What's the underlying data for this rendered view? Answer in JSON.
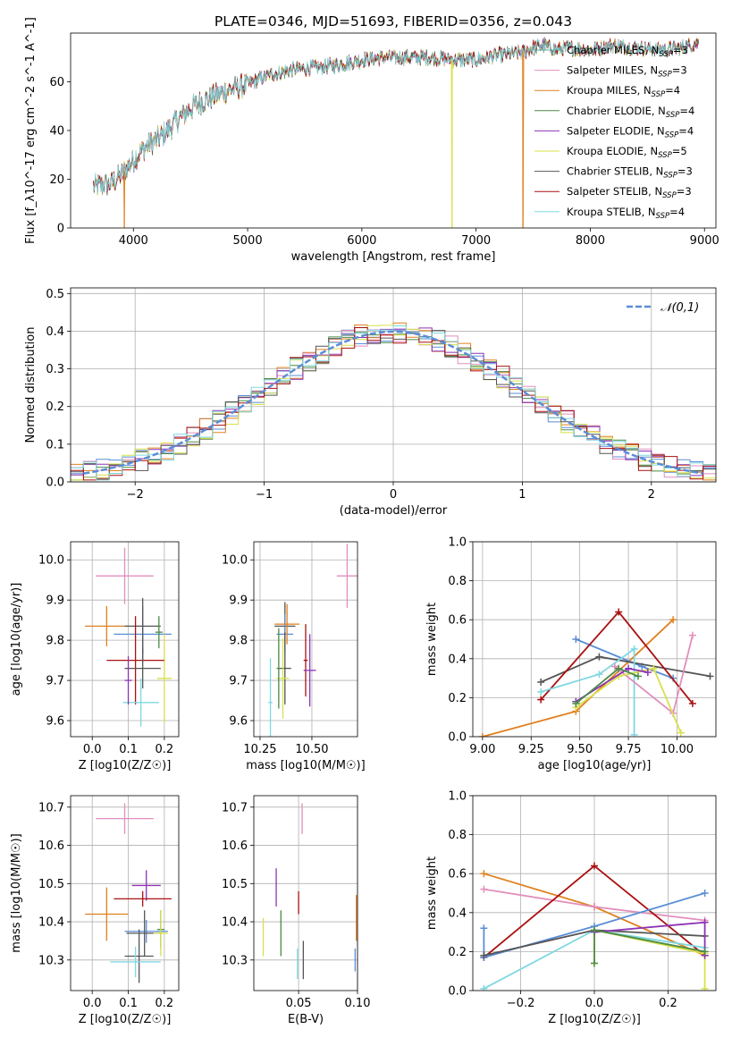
{
  "title": "PLATE=0346, MJD=51693, FIBERID=0356, z=0.043",
  "chart_data": [
    {
      "id": "spectrum",
      "type": "line",
      "xlabel": "wavelength [Angstrom, rest frame]",
      "ylabel": "Flux [f_λ10^-17 erg cm^-2 s^-1 A^-1]",
      "xlim": [
        3450,
        9100
      ],
      "ylim": [
        0,
        80
      ],
      "xticks": [
        4000,
        5000,
        6000,
        7000,
        8000,
        9000
      ],
      "yticks": [
        0,
        20,
        40,
        60
      ],
      "legend_position": "right",
      "grid": false,
      "spectrum_envelope": {
        "x": [
          3650,
          3800,
          3900,
          4000,
          4100,
          4200,
          4300,
          4400,
          4500,
          4600,
          4800,
          5000,
          5200,
          5400,
          5600,
          5800,
          6000,
          6200,
          6400,
          6600,
          6800,
          7000,
          7200,
          7400,
          7500,
          7600,
          7700,
          7800,
          8000,
          8200,
          8400,
          8600,
          8800,
          8950
        ],
        "y": [
          17,
          18,
          22,
          28,
          33,
          36,
          40,
          45,
          49,
          52,
          56,
          59,
          63,
          65,
          66,
          67,
          69,
          70,
          70,
          70,
          69,
          69,
          71,
          72,
          74,
          75,
          73,
          74,
          73,
          75,
          74,
          73,
          74,
          76
        ]
      },
      "series": [
        {
          "name": "Chabrier MILES, N_SSP=3",
          "color": "#5fb1a5"
        },
        {
          "name": "Salpeter MILES, N_SSP=3",
          "color": "#e28ebc"
        },
        {
          "name": "Kroupa MILES, N_SSP=4",
          "color": "#e0801f"
        },
        {
          "name": "Chabrier ELODIE, N_SSP=4",
          "color": "#4b8b45"
        },
        {
          "name": "Salpeter ELODIE, N_SSP=4",
          "color": "#8d33b5"
        },
        {
          "name": "Kroupa ELODIE, N_SSP=5",
          "color": "#d9e04a"
        },
        {
          "name": "Chabrier STELIB, N_SSP=3",
          "color": "#555555"
        },
        {
          "name": "Salpeter STELIB, N_SSP=3",
          "color": "#aa1111"
        },
        {
          "name": "Kroupa STELIB, N_SSP=4",
          "color": "#7fd8e0"
        }
      ],
      "dropouts": [
        {
          "x": 3920,
          "color": "#e0801f"
        },
        {
          "x": 6790,
          "color": "#d9e04a"
        },
        {
          "x": 7410,
          "color": "#e0801f"
        }
      ]
    },
    {
      "id": "residuals",
      "type": "histogram",
      "xlabel": "(data-model)/error",
      "ylabel": "Normed distribution",
      "xlim": [
        -2.5,
        2.5
      ],
      "ylim": [
        0,
        0.515
      ],
      "xticks": [
        -2,
        -1,
        0,
        1,
        2
      ],
      "yticks": [
        0.0,
        0.1,
        0.2,
        0.3,
        0.4,
        0.5
      ],
      "grid": true,
      "legend": "𝒩(0,1)",
      "legend_position": "top-right",
      "normal_curve_color": "#5b8dd6",
      "hist_colors": [
        "#5b8dd6",
        "#e0801f",
        "#e28ebc",
        "#4b8b45",
        "#8d33b5",
        "#d9e04a",
        "#555555",
        "#aa1111",
        "#7fd8e0"
      ]
    },
    {
      "id": "age_vs_Z",
      "type": "errorbar",
      "xlabel": "Z [log10(Z/Z☉)]",
      "ylabel": "age  [log10(age/yr)]",
      "xlim": [
        -0.06,
        0.24
      ],
      "ylim": [
        9.56,
        10.045
      ],
      "xticks": [
        0.0,
        0.1,
        0.2
      ],
      "yticks": [
        9.6,
        9.7,
        9.8,
        9.9,
        10.0
      ],
      "grid": true,
      "points": [
        {
          "x": 0.09,
          "y": 9.96,
          "xerr": 0.08,
          "yerr": 0.07,
          "color": "#e28ebc"
        },
        {
          "x": 0.04,
          "y": 9.835,
          "xerr": 0.06,
          "yerr": 0.05,
          "color": "#e0801f"
        },
        {
          "x": 0.14,
          "y": 9.815,
          "xerr": 0.08,
          "yerr": 0.07,
          "color": "#5b8dd6"
        },
        {
          "x": 0.14,
          "y": 9.835,
          "xerr": 0.05,
          "yerr": 0.07,
          "color": "#555555"
        },
        {
          "x": 0.185,
          "y": 9.82,
          "xerr": 0.01,
          "yerr": 0.04,
          "color": "#4b8b45"
        },
        {
          "x": 0.2,
          "y": 9.705,
          "xerr": 0.02,
          "yerr": 0.11,
          "color": "#d9e04a"
        },
        {
          "x": 0.12,
          "y": 9.75,
          "xerr": 0.08,
          "yerr": 0.11,
          "color": "#aa1111"
        },
        {
          "x": 0.14,
          "y": 9.73,
          "xerr": 0.05,
          "yerr": 0.05,
          "color": "#555555"
        },
        {
          "x": 0.135,
          "y": 9.645,
          "xerr": 0.05,
          "yerr": 0.06,
          "color": "#7fd8e0"
        },
        {
          "x": 0.1,
          "y": 9.7,
          "xerr": 0.01,
          "yerr": 0.06,
          "color": "#8d33b5"
        }
      ]
    },
    {
      "id": "age_vs_mass",
      "type": "errorbar",
      "xlabel": "mass [log10(M/M☉)]",
      "ylabel": "",
      "xlim": [
        10.22,
        10.72
      ],
      "ylim": [
        9.56,
        10.045
      ],
      "xticks": [
        10.25,
        10.5
      ],
      "yticks": [
        9.6,
        9.7,
        9.8,
        9.9,
        10.0
      ],
      "grid": true,
      "points": [
        {
          "x": 10.67,
          "y": 9.96,
          "xerr": 0.05,
          "yerr": 0.08,
          "color": "#e28ebc"
        },
        {
          "x": 10.37,
          "y": 9.835,
          "xerr": 0.05,
          "yerr": 0.06,
          "color": "#555555"
        },
        {
          "x": 10.37,
          "y": 9.815,
          "xerr": 0.04,
          "yerr": 0.05,
          "color": "#5b8dd6"
        },
        {
          "x": 10.38,
          "y": 9.84,
          "xerr": 0.06,
          "yerr": 0.05,
          "color": "#e0801f"
        },
        {
          "x": 10.37,
          "y": 9.73,
          "xerr": 0.03,
          "yerr": 0.09,
          "color": "#555555"
        },
        {
          "x": 10.47,
          "y": 9.75,
          "xerr": 0.01,
          "yerr": 0.09,
          "color": "#aa1111"
        },
        {
          "x": 10.49,
          "y": 9.725,
          "xerr": 0.03,
          "yerr": 0.09,
          "color": "#8d33b5"
        },
        {
          "x": 10.36,
          "y": 9.705,
          "xerr": 0.03,
          "yerr": 0.1,
          "color": "#d9e04a"
        },
        {
          "x": 10.3,
          "y": 9.645,
          "xerr": 0.01,
          "yerr": 0.11,
          "color": "#7fd8e0"
        },
        {
          "x": 10.34,
          "y": 9.73,
          "xerr": 0.01,
          "yerr": 0.1,
          "color": "#4b8b45"
        }
      ]
    },
    {
      "id": "massweight_vs_age",
      "type": "line",
      "xlabel": "age  [log10(age/yr)]",
      "ylabel": "mass weight",
      "xlim": [
        8.95,
        10.2
      ],
      "ylim": [
        0,
        1.0
      ],
      "xticks": [
        9.0,
        9.25,
        9.5,
        9.75,
        10.0
      ],
      "yticks": [
        0.0,
        0.2,
        0.4,
        0.6,
        0.8,
        1.0
      ],
      "grid": true,
      "series": [
        {
          "color": "#e0801f",
          "x": [
            9.0,
            9.48,
            9.98
          ],
          "y": [
            0.0,
            0.13,
            0.6
          ]
        },
        {
          "color": "#5b8dd6",
          "x": [
            9.48,
            9.82,
            9.98
          ],
          "y": [
            0.5,
            0.36,
            0.3
          ]
        },
        {
          "color": "#555555",
          "x": [
            9.3,
            9.6,
            10.17
          ],
          "y": [
            0.28,
            0.41,
            0.31
          ]
        },
        {
          "color": "#aa1111",
          "x": [
            9.3,
            9.7,
            10.08
          ],
          "y": [
            0.19,
            0.64,
            0.17
          ]
        },
        {
          "color": "#7fd8e0",
          "x": [
            9.3,
            9.6,
            9.78,
            9.78
          ],
          "y": [
            0.23,
            0.32,
            0.45,
            0.01
          ]
        },
        {
          "color": "#e28ebc",
          "x": [
            9.68,
            9.98,
            10.08
          ],
          "y": [
            0.36,
            0.12,
            0.52
          ]
        },
        {
          "color": "#d9e04a",
          "x": [
            9.48,
            9.7,
            9.88,
            10.02
          ],
          "y": [
            0.15,
            0.31,
            0.35,
            0.02
          ]
        },
        {
          "color": "#8d33b5",
          "x": [
            9.48,
            9.75,
            9.85
          ],
          "y": [
            0.18,
            0.35,
            0.33
          ]
        },
        {
          "color": "#4b8b45",
          "x": [
            9.48,
            9.7,
            9.8
          ],
          "y": [
            0.17,
            0.35,
            0.31
          ]
        }
      ]
    },
    {
      "id": "mass_vs_Z",
      "type": "errorbar",
      "xlabel": "Z [log10(Z/Z☉)]",
      "ylabel": "mass [log10(M/M☉)]",
      "xlim": [
        -0.06,
        0.24
      ],
      "ylim": [
        10.22,
        10.73
      ],
      "xticks": [
        0.0,
        0.1,
        0.2
      ],
      "yticks": [
        10.3,
        10.4,
        10.5,
        10.6,
        10.7
      ],
      "grid": true,
      "points": [
        {
          "x": 0.09,
          "y": 10.67,
          "xerr": 0.08,
          "yerr": 0.04,
          "color": "#e28ebc"
        },
        {
          "x": 0.15,
          "y": 10.495,
          "xerr": 0.04,
          "yerr": 0.04,
          "color": "#8d33b5"
        },
        {
          "x": 0.14,
          "y": 10.46,
          "xerr": 0.08,
          "yerr": 0.02,
          "color": "#aa1111"
        },
        {
          "x": 0.04,
          "y": 10.42,
          "xerr": 0.06,
          "yerr": 0.07,
          "color": "#e0801f"
        },
        {
          "x": 0.15,
          "y": 10.375,
          "xerr": 0.06,
          "yerr": 0.03,
          "color": "#5b8dd6"
        },
        {
          "x": 0.145,
          "y": 10.37,
          "xerr": 0.05,
          "yerr": 0.06,
          "color": "#555555"
        },
        {
          "x": 0.19,
          "y": 10.38,
          "xerr": 0.01,
          "yerr": 0.05,
          "color": "#4b8b45"
        },
        {
          "x": 0.19,
          "y": 10.37,
          "xerr": 0.02,
          "yerr": 0.06,
          "color": "#d9e04a"
        },
        {
          "x": 0.13,
          "y": 10.31,
          "xerr": 0.04,
          "yerr": 0.07,
          "color": "#555555"
        },
        {
          "x": 0.12,
          "y": 10.295,
          "xerr": 0.07,
          "yerr": 0.04,
          "color": "#7fd8e0"
        }
      ]
    },
    {
      "id": "mass_vs_ebv",
      "type": "errorbar",
      "xlabel": "E(B-V)",
      "ylabel": "",
      "xlim": [
        0.012,
        0.1
      ],
      "ylim": [
        10.22,
        10.73
      ],
      "xticks": [
        0.05,
        0.1
      ],
      "yticks": [
        10.3,
        10.4,
        10.5,
        10.6,
        10.7
      ],
      "grid": true,
      "points": [
        {
          "x": 0.053,
          "y": 10.67,
          "xerr": 0.0,
          "yerr": 0.04,
          "color": "#e28ebc"
        },
        {
          "x": 0.031,
          "y": 10.49,
          "xerr": 0.0,
          "yerr": 0.05,
          "color": "#8d33b5"
        },
        {
          "x": 0.05,
          "y": 10.45,
          "xerr": 0.0,
          "yerr": 0.03,
          "color": "#aa1111"
        },
        {
          "x": 0.099,
          "y": 10.41,
          "xerr": 0.0,
          "yerr": 0.06,
          "color": "#e0801f"
        },
        {
          "x": 0.035,
          "y": 10.37,
          "xerr": 0.0,
          "yerr": 0.06,
          "color": "#4b8b45"
        },
        {
          "x": 0.02,
          "y": 10.36,
          "xerr": 0.0,
          "yerr": 0.05,
          "color": "#d9e04a"
        },
        {
          "x": 0.054,
          "y": 10.3,
          "xerr": 0.0,
          "yerr": 0.05,
          "color": "#555555"
        },
        {
          "x": 0.049,
          "y": 10.29,
          "xerr": 0.0,
          "yerr": 0.04,
          "color": "#7fd8e0"
        },
        {
          "x": 0.098,
          "y": 10.3,
          "xerr": 0.0,
          "yerr": 0.03,
          "color": "#5b8dd6"
        }
      ]
    },
    {
      "id": "massweight_vs_Z",
      "type": "line",
      "xlabel": "Z [log10(Z/Z☉)]",
      "ylabel": "mass weight",
      "xlim": [
        -0.33,
        0.33
      ],
      "ylim": [
        0,
        1.0
      ],
      "xticks": [
        -0.2,
        0.0,
        0.2
      ],
      "yticks": [
        0.0,
        0.2,
        0.4,
        0.6,
        0.8,
        1.0
      ],
      "grid": true,
      "series": [
        {
          "color": "#e0801f",
          "x": [
            -0.3,
            0.0,
            0.3
          ],
          "y": [
            0.6,
            0.43,
            0.18
          ]
        },
        {
          "color": "#e28ebc",
          "x": [
            -0.3,
            0.0,
            0.3
          ],
          "y": [
            0.52,
            0.43,
            0.36
          ]
        },
        {
          "color": "#aa1111",
          "x": [
            -0.3,
            0.0,
            0.3
          ],
          "y": [
            0.17,
            0.64,
            0.18
          ]
        },
        {
          "color": "#5b8dd6",
          "x": [
            -0.3,
            -0.3,
            0.0,
            0.3
          ],
          "y": [
            0.32,
            0.17,
            0.33,
            0.5
          ]
        },
        {
          "color": "#7fd8e0",
          "x": [
            -0.3,
            0.0,
            0.3
          ],
          "y": [
            0.01,
            0.31,
            0.22
          ]
        },
        {
          "color": "#555555",
          "x": [
            -0.3,
            0.0,
            0.3
          ],
          "y": [
            0.18,
            0.31,
            0.28
          ]
        },
        {
          "color": "#d9e04a",
          "x": [
            0.0,
            0.0,
            0.3,
            0.3
          ],
          "y": [
            0.14,
            0.31,
            0.19,
            0.01
          ]
        },
        {
          "color": "#8d33b5",
          "x": [
            0.0,
            0.3,
            0.3
          ],
          "y": [
            0.3,
            0.35,
            0.18
          ]
        },
        {
          "color": "#4b8b45",
          "x": [
            0.0,
            0.0,
            0.3
          ],
          "y": [
            0.14,
            0.31,
            0.2
          ]
        }
      ]
    }
  ]
}
